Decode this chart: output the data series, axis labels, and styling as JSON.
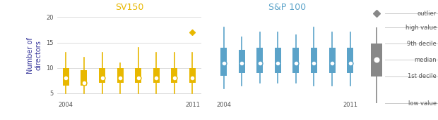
{
  "sv150_title": "SV150",
  "sp100_title": "S&P 100",
  "ylabel": "Number of\ndirectors",
  "sv150_color": "#E8B800",
  "sp100_color": "#5BA3C9",
  "legend_color": "#888888",
  "title_color_sv": "#E8B800",
  "title_color_sp": "#5BA3C9",
  "ylabel_color": "#333399",
  "sv150_ylim": [
    4,
    21
  ],
  "sv150_yticks": [
    5,
    10,
    15,
    20
  ],
  "sv150_data": [
    {
      "year": 2004,
      "low": 5,
      "p1": 6.5,
      "median": 8,
      "p9": 10,
      "high": 13,
      "outlier": null
    },
    {
      "year": 2005,
      "low": 5,
      "p1": 6.5,
      "median": 7,
      "p9": 9.5,
      "high": 12,
      "outlier": null
    },
    {
      "year": 2006,
      "low": 5,
      "p1": 7,
      "median": 8,
      "p9": 10,
      "high": 13,
      "outlier": null
    },
    {
      "year": 2007,
      "low": 5,
      "p1": 7,
      "median": 8,
      "p9": 10,
      "high": 11,
      "outlier": null
    },
    {
      "year": 2008,
      "low": 5,
      "p1": 7,
      "median": 8,
      "p9": 10,
      "high": 14,
      "outlier": null
    },
    {
      "year": 2009,
      "low": 5,
      "p1": 7,
      "median": 8,
      "p9": 10,
      "high": 13,
      "outlier": null
    },
    {
      "year": 2010,
      "low": 5,
      "p1": 7,
      "median": 8,
      "p9": 10,
      "high": 13,
      "outlier": null
    },
    {
      "year": 2011,
      "low": 5,
      "p1": 7,
      "median": 8,
      "p9": 10,
      "high": 13,
      "outlier": 17
    }
  ],
  "sp100_data": [
    {
      "year": 2004,
      "low": 5,
      "p1": 7.5,
      "median": 10,
      "p9": 13,
      "high": 17,
      "outlier": null
    },
    {
      "year": 2005,
      "low": 5.5,
      "p1": 8,
      "median": 10,
      "p9": 12.5,
      "high": 15,
      "outlier": null
    },
    {
      "year": 2006,
      "low": 6,
      "p1": 8,
      "median": 10,
      "p9": 13,
      "high": 16,
      "outlier": null
    },
    {
      "year": 2007,
      "low": 6,
      "p1": 8,
      "median": 10,
      "p9": 13,
      "high": 16,
      "outlier": null
    },
    {
      "year": 2008,
      "low": 6,
      "p1": 8,
      "median": 10,
      "p9": 13,
      "high": 15.5,
      "outlier": null
    },
    {
      "year": 2009,
      "low": 5.5,
      "p1": 8,
      "median": 10,
      "p9": 13,
      "high": 17,
      "outlier": null
    },
    {
      "year": 2010,
      "low": 5.5,
      "p1": 8,
      "median": 10,
      "p9": 13,
      "high": 16,
      "outlier": null
    },
    {
      "year": 2011,
      "low": 5.5,
      "p1": 8,
      "median": 10,
      "p9": 13,
      "high": 16,
      "outlier": null
    }
  ],
  "sp100_ylim": [
    3,
    20
  ],
  "background_color": "#ffffff",
  "grid_color": "#cccccc"
}
